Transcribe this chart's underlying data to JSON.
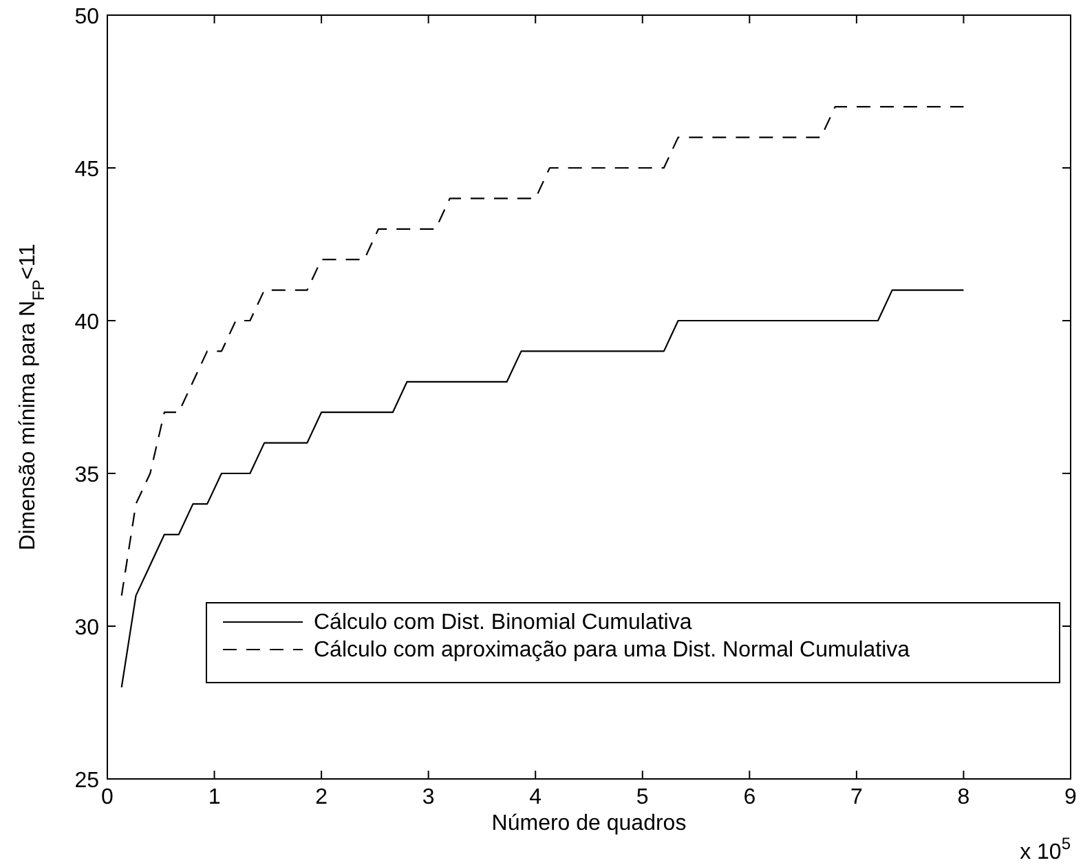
{
  "chart_data": {
    "type": "line",
    "xlabel": "Número de quadros",
    "ylabel": "Dimensão mínima para N$_{FP}$<11",
    "xlim": [
      0,
      9
    ],
    "xticks": [
      0,
      1,
      2,
      3,
      4,
      5,
      6,
      7,
      8,
      9
    ],
    "ylim": [
      25,
      50
    ],
    "yticks": [
      25,
      30,
      35,
      40,
      45,
      50
    ],
    "grid": false,
    "legend": "bottom right",
    "annotations": [
      "x 10$^{5}$"
    ],
    "series": [
      {
        "name": "Cálculo com Dist. Binomial Cumulativa",
        "color": "#000000",
        "line_style": "solid",
        "x": [
          0.133,
          0.267,
          0.4,
          0.533,
          0.667,
          0.8,
          0.933,
          1.067,
          1.333,
          1.467,
          1.867,
          2.0,
          2.667,
          2.8,
          3.733,
          3.867,
          5.2,
          5.333,
          7.2,
          7.333,
          8.0
        ],
        "values": [
          28,
          31,
          32,
          33,
          33,
          34,
          34,
          35,
          35,
          36,
          36,
          37,
          37,
          38,
          38,
          39,
          39,
          40,
          40,
          41,
          41
        ]
      },
      {
        "name": "Cálculo com aproximação para uma Dist. Normal Cumulativa",
        "color": "#000000",
        "line_style": "dashed",
        "x": [
          0.133,
          0.267,
          0.4,
          0.533,
          0.667,
          0.8,
          0.933,
          1.067,
          1.2,
          1.333,
          1.467,
          1.867,
          2.0,
          2.4,
          2.533,
          3.067,
          3.2,
          4.0,
          4.133,
          5.2,
          5.333,
          6.667,
          6.8,
          8.0
        ],
        "values": [
          31,
          34,
          35,
          37,
          37,
          38,
          39,
          39,
          40,
          40,
          41,
          41,
          42,
          42,
          43,
          43,
          44,
          44,
          45,
          45,
          46,
          46,
          47,
          47
        ]
      }
    ]
  }
}
